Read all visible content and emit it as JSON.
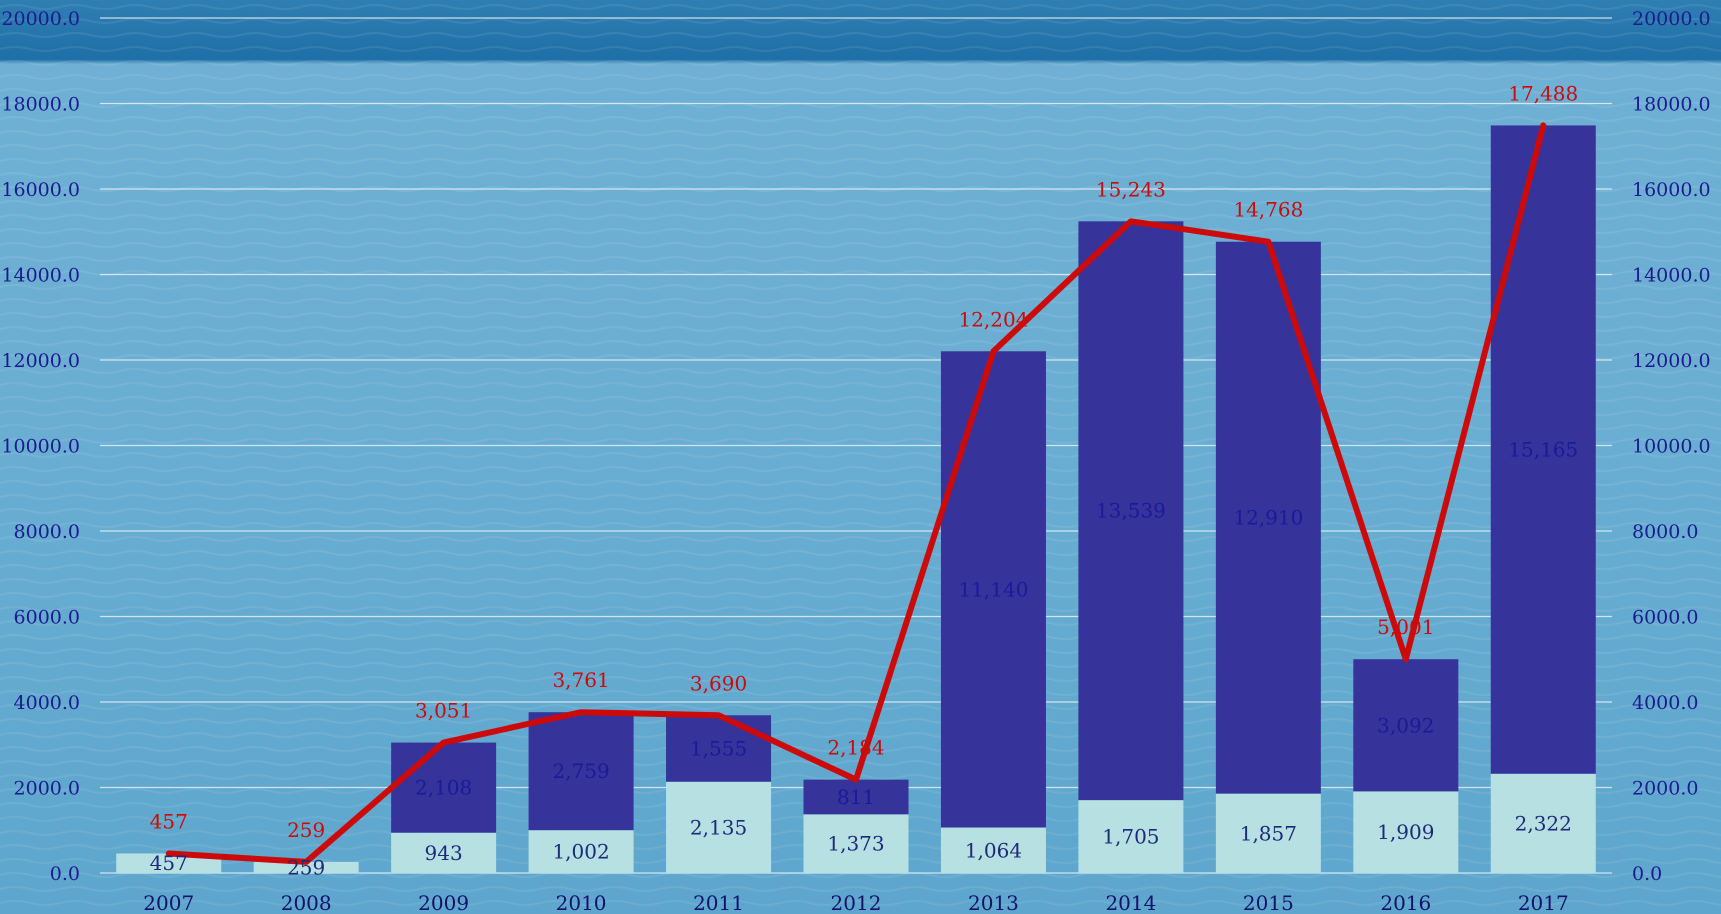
{
  "chart_data": {
    "type": "bar",
    "stacked": true,
    "categories": [
      "2007",
      "2008",
      "2009",
      "2010",
      "2011",
      "2012",
      "2013",
      "2014",
      "2015",
      "2016",
      "2017"
    ],
    "series": [
      {
        "type": "bar",
        "color": "#b6e0e2",
        "values": [
          457,
          259,
          943,
          1002,
          2135,
          1373,
          1064,
          1705,
          1857,
          1909,
          2322
        ],
        "labels": [
          "457",
          "259",
          "943",
          "1,002",
          "2,135",
          "1,373",
          "1,064",
          "1,705",
          "1,857",
          "1,909",
          "2,322"
        ]
      },
      {
        "type": "bar",
        "color": "#36339a",
        "values": [
          0,
          0,
          2108,
          2759,
          1555,
          811,
          11140,
          13539,
          12910,
          3092,
          15165
        ],
        "labels": [
          "",
          "",
          "2,108",
          "2,759",
          "1,555",
          "811",
          "11,140",
          "13,539",
          "12,910",
          "3,092",
          "15,165"
        ]
      },
      {
        "type": "line",
        "color": "#cc0a0a",
        "values": [
          457,
          259,
          3051,
          3761,
          3690,
          2184,
          12204,
          15243,
          14768,
          5001,
          17488
        ],
        "labels": [
          "457",
          "259",
          "3,051",
          "3,761",
          "3,690",
          "2,184",
          "12,204",
          "15,243",
          "14,768",
          "5,001",
          "17,488"
        ]
      }
    ],
    "ylim": [
      0,
      20000
    ],
    "yticks": [
      "0.0",
      "2000.0",
      "4000.0",
      "6000.0",
      "8000.0",
      "10000.0",
      "12000.0",
      "14000.0",
      "16000.0",
      "18000.0",
      "20000.0"
    ],
    "y2ticks": [
      "0.0",
      "2000.0",
      "4000.0",
      "6000.0",
      "8000.0",
      "10000.0",
      "12000.0",
      "14000.0",
      "16000.0",
      "18000.0",
      "20000.0"
    ],
    "grid": true,
    "background": "sea-water-photo",
    "title": "",
    "xlabel": "",
    "ylabel": ""
  }
}
